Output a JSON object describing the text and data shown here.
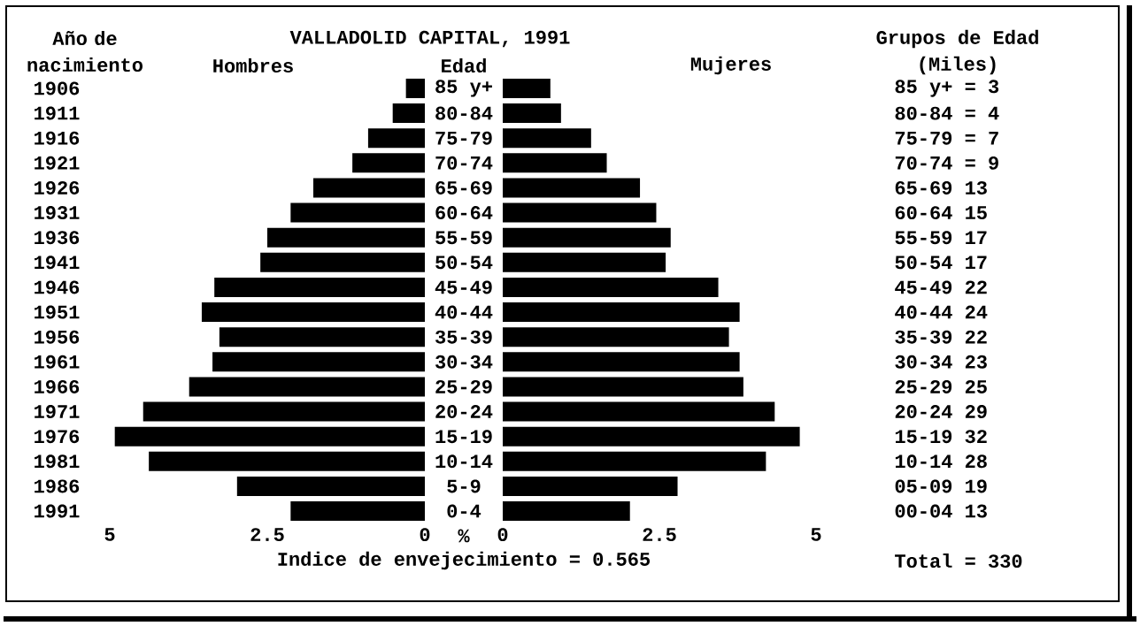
{
  "chart_data": [
    {
      "type": "bar",
      "orientation": "horizontal",
      "title": "VALLADOLID CAPITAL, 1991",
      "ylabel": "Año de nacimiento",
      "xlabel": "%",
      "categories": [
        "1906",
        "1911",
        "1916",
        "1921",
        "1926",
        "1931",
        "1936",
        "1941",
        "1946",
        "1951",
        "1956",
        "1961",
        "1966",
        "1971",
        "1976",
        "1981",
        "1986",
        "1991"
      ],
      "series": [
        {
          "name": "Hombres",
          "color": "#000000",
          "values": [
            0.3,
            0.51,
            0.9,
            1.15,
            1.77,
            2.13,
            2.5,
            2.61,
            3.34,
            3.54,
            3.26,
            3.37,
            3.74,
            4.47,
            4.92,
            4.38,
            2.98,
            2.13
          ]
        }
      ],
      "xlim": [
        5,
        0
      ],
      "xticks": [
        5,
        2.5,
        0
      ],
      "annotations": [
        "Indice de envejecimiento = 0.565"
      ]
    },
    {
      "type": "bar",
      "orientation": "horizontal",
      "ylabel": "Edad",
      "categories": [
        "85 y+",
        "80-84",
        "75-79",
        "70-74",
        "65-69",
        "60-64",
        "55-59",
        "50-54",
        "45-49",
        "40-44",
        "35-39",
        "30-34",
        "25-29",
        "20-24",
        "15-19",
        "10-14",
        "5-9",
        "0-4"
      ],
      "series": [
        {
          "name": "Mujeres",
          "color": "#000000",
          "values": [
            0.76,
            0.93,
            1.41,
            1.66,
            2.19,
            2.45,
            2.68,
            2.6,
            3.44,
            3.78,
            3.61,
            3.78,
            3.84,
            4.34,
            4.74,
            4.2,
            2.79,
            2.03
          ]
        }
      ],
      "xlim": [
        0,
        5
      ],
      "xticks": [
        0,
        2.5,
        5
      ]
    },
    {
      "type": "other",
      "title": "Grupos de Edad",
      "subtitle": "(Miles)",
      "annotations": [
        "85 y+ = 3",
        "80-84 = 4",
        "75-79 = 7",
        "70-74 = 9",
        "65-69 13",
        "60-64 15",
        "55-59 17",
        "50-54 17",
        "45-49 22",
        "40-44 24",
        "35-39 22",
        "30-34 23",
        "25-29 25",
        "20-24 29",
        "15-19 32",
        "10-14 28",
        "05-09 19",
        "00-04 13",
        "Total = 330"
      ]
    }
  ]
}
